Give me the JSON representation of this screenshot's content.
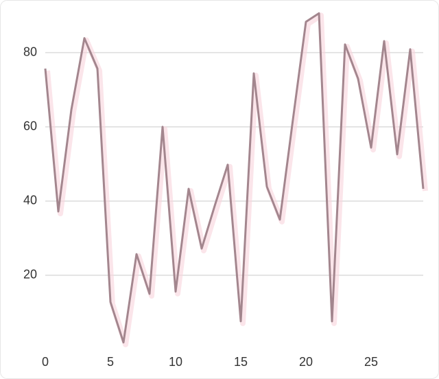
{
  "chart_data": {
    "type": "line",
    "x": [
      0,
      1,
      2,
      3,
      4,
      5,
      6,
      7,
      8,
      9,
      10,
      11,
      12,
      13,
      14,
      15,
      16,
      17,
      18,
      19,
      20,
      21,
      22,
      23,
      24,
      25,
      26,
      27,
      28,
      29
    ],
    "series": [
      {
        "color": "#a3868e",
        "values": [
          75.7,
          37.2,
          64.6,
          83.9,
          75.7,
          12.8,
          1.9,
          25.7,
          15,
          60,
          15.6,
          43.3,
          27.2,
          38.7,
          49.8,
          7.6,
          74.4,
          43.9,
          35,
          61.9,
          88.3,
          90.6,
          7.6,
          82.2,
          73,
          54.4,
          83.1,
          52.6,
          80.9,
          43.3
        ]
      }
    ],
    "xlim": [
      0,
      29
    ],
    "xticks": [
      0,
      5,
      10,
      15,
      20,
      25
    ],
    "ylim": [
      0,
      94
    ],
    "yticks": [
      20,
      40,
      60,
      80
    ],
    "grid": true
  }
}
